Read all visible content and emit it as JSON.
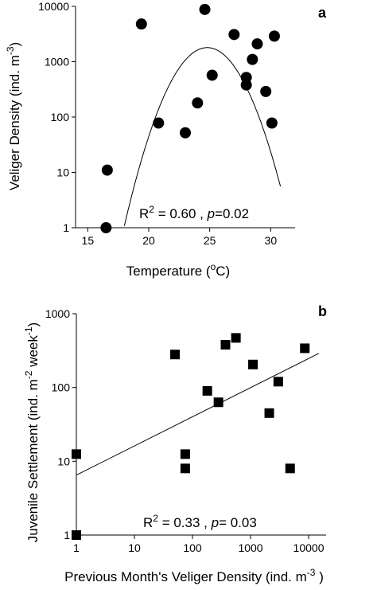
{
  "chart_data": [
    {
      "type": "scatter",
      "panel_label": "a",
      "xlabel": {
        "main": "Temperature (",
        "sup": "o",
        "unit": "C)"
      },
      "ylabel": {
        "main": "Veliger Density (ind. m",
        "sup": "-3",
        "end": ")"
      },
      "xlim": [
        14,
        32
      ],
      "ylim": [
        1,
        10000
      ],
      "yscale": "log",
      "xticks": [
        15,
        20,
        25,
        30
      ],
      "xtick_labels": [
        "15",
        "20",
        "25",
        "30"
      ],
      "yticks": [
        1,
        10,
        100,
        1000,
        10000
      ],
      "ytick_labels": [
        "1",
        "10",
        "100",
        "1000",
        "10000"
      ],
      "marker": "circle",
      "points": [
        {
          "x": 16.5,
          "y": 1
        },
        {
          "x": 16.6,
          "y": 11
        },
        {
          "x": 19.4,
          "y": 4800
        },
        {
          "x": 20.8,
          "y": 78
        },
        {
          "x": 23.0,
          "y": 52
        },
        {
          "x": 24.0,
          "y": 180
        },
        {
          "x": 24.6,
          "y": 8800
        },
        {
          "x": 25.2,
          "y": 570
        },
        {
          "x": 27.0,
          "y": 3100
        },
        {
          "x": 28.0,
          "y": 520
        },
        {
          "x": 28.0,
          "y": 380
        },
        {
          "x": 28.5,
          "y": 1100
        },
        {
          "x": 28.9,
          "y": 2100
        },
        {
          "x": 29.6,
          "y": 290
        },
        {
          "x": 30.1,
          "y": 78
        },
        {
          "x": 30.3,
          "y": 2900
        }
      ],
      "fit": {
        "type": "quadratic-log",
        "x_range": [
          15.2,
          30.8
        ],
        "peak_x": 24.8,
        "peak_y": 1800,
        "curvature": 0.0697
      },
      "annotation": {
        "r2_prefix": "R",
        "r2_sup": "2",
        "r2_text": " = 0.60 , ",
        "p_letter": "p",
        "p_text": "=0.02"
      }
    },
    {
      "type": "scatter",
      "panel_label": "b",
      "xlabel": {
        "main": "Previous Month's Veliger Density (ind. m",
        "sup": "-3",
        "end": " )"
      },
      "ylabel": {
        "main": "Juvenile Settlement (ind. m",
        "sup1": "-2",
        "mid": " week",
        "sup2": "-1",
        "end": ")"
      },
      "xlim": [
        1,
        20000
      ],
      "ylim": [
        1,
        1000
      ],
      "xscale": "log",
      "yscale": "log",
      "xticks": [
        1,
        10,
        100,
        1000,
        10000
      ],
      "xtick_labels": [
        "1",
        "10",
        "100",
        "1000",
        "10000"
      ],
      "yticks": [
        1,
        10,
        100,
        1000
      ],
      "ytick_labels": [
        "1",
        "10",
        "100",
        "1000"
      ],
      "marker": "square",
      "points": [
        {
          "x": 1,
          "y": 1
        },
        {
          "x": 1,
          "y": 12.5
        },
        {
          "x": 50,
          "y": 280
        },
        {
          "x": 75,
          "y": 12.5
        },
        {
          "x": 75,
          "y": 8
        },
        {
          "x": 180,
          "y": 90
        },
        {
          "x": 280,
          "y": 63
        },
        {
          "x": 370,
          "y": 380
        },
        {
          "x": 560,
          "y": 470
        },
        {
          "x": 1100,
          "y": 205
        },
        {
          "x": 2100,
          "y": 45
        },
        {
          "x": 3000,
          "y": 120
        },
        {
          "x": 4800,
          "y": 8
        },
        {
          "x": 8600,
          "y": 340
        }
      ],
      "fit": {
        "type": "linear-loglog",
        "start": [
          1,
          6.5
        ],
        "end": [
          15000,
          290
        ]
      },
      "annotation": {
        "r2_prefix": "R",
        "r2_sup": "2",
        "r2_text": " = 0.33 , ",
        "p_letter": "p",
        "p_text": "= 0.03"
      }
    }
  ]
}
